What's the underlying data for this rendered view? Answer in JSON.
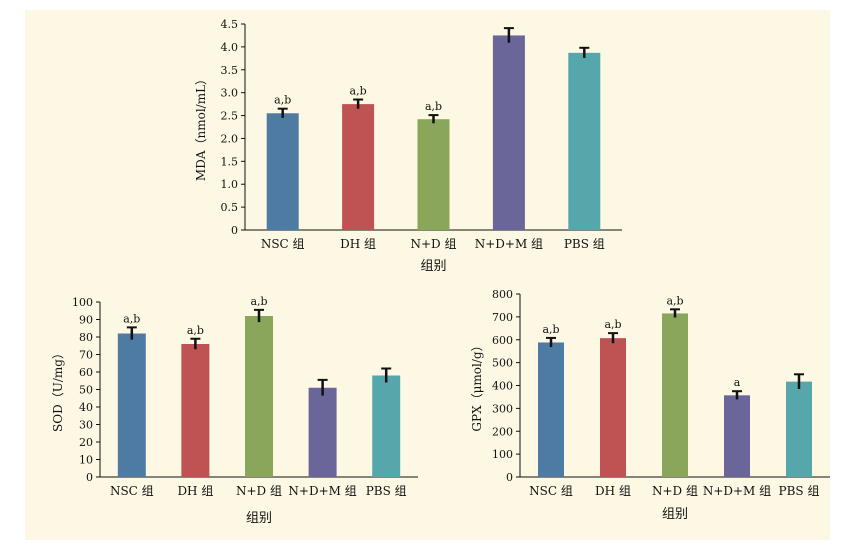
{
  "colors": {
    "background": "#fdf8e4",
    "bars": [
      "#4e7ba3",
      "#bf5252",
      "#8aa65a",
      "#6a669a",
      "#55a7ac"
    ],
    "error_bar": "#111111"
  },
  "chart_data": [
    {
      "type": "bar",
      "title": "",
      "xlabel": "组别",
      "ylabel": "MDA（nmol/mL）",
      "categories": [
        "NSC 组",
        "DH 组",
        "N+D 组",
        "N+D+M 组",
        "PBS 组"
      ],
      "values": [
        2.55,
        2.75,
        2.42,
        4.25,
        3.87
      ],
      "errors": [
        0.1,
        0.1,
        0.09,
        0.16,
        0.11
      ],
      "annotations": [
        "a,b",
        "a,b",
        "a,b",
        "",
        ""
      ],
      "ylim": [
        0,
        4.5
      ],
      "yticks": [
        "0",
        "0.5",
        "1.0",
        "1.5",
        "2.0",
        "2.5",
        "3.0",
        "3.5",
        "4.0",
        "4.5"
      ],
      "grid": false,
      "legend": "none"
    },
    {
      "type": "bar",
      "title": "",
      "xlabel": "组别",
      "ylabel": "SOD（U/mg）",
      "categories": [
        "NSC 组",
        "DH 组",
        "N+D 组",
        "N+D+M 组",
        "PBS 组"
      ],
      "values": [
        82,
        76,
        92,
        51,
        58
      ],
      "errors": [
        3.5,
        3,
        3.5,
        4.5,
        4
      ],
      "annotations": [
        "a,b",
        "a,b",
        "a,b",
        "",
        ""
      ],
      "ylim": [
        0,
        100
      ],
      "yticks": [
        "0",
        "10",
        "20",
        "30",
        "40",
        "50",
        "60",
        "70",
        "80",
        "90",
        "100"
      ],
      "grid": false,
      "legend": "none"
    },
    {
      "type": "bar",
      "title": "",
      "xlabel": "组别",
      "ylabel": "GPX（μmol/g）",
      "categories": [
        "NSC 组",
        "DH 组",
        "N+D 组",
        "N+D+M 组",
        "PBS 组"
      ],
      "values": [
        588,
        607,
        715,
        357,
        417
      ],
      "errors": [
        20,
        22,
        18,
        18,
        32
      ],
      "annotations": [
        "a,b",
        "a,b",
        "a,b",
        "a",
        ""
      ],
      "ylim": [
        0,
        800
      ],
      "yticks": [
        "0",
        "100",
        "200",
        "300",
        "400",
        "500",
        "600",
        "700",
        "800"
      ],
      "grid": false,
      "legend": "none"
    }
  ]
}
